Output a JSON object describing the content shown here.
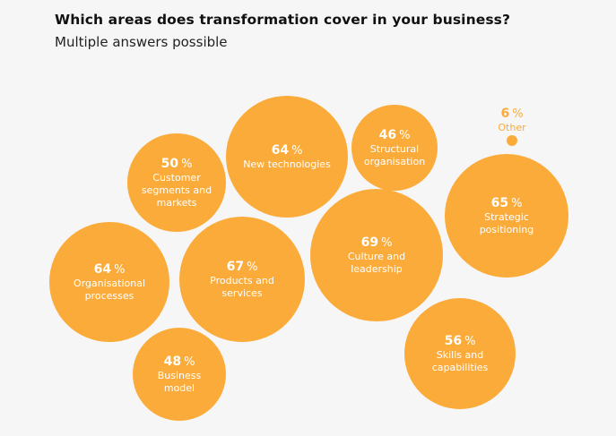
{
  "header": {
    "title": "Which areas does transformation cover in your business?",
    "subtitle": "Multiple answers possible"
  },
  "colors": {
    "bubble": "#fbab3a",
    "background": "#f6f6f6"
  },
  "chart_data": {
    "type": "bubble",
    "title": "Which areas does transformation cover in your business?",
    "subtitle": "Multiple answers possible",
    "unit": "%",
    "items": [
      {
        "label": "New technologies",
        "lines": [
          "New technologies"
        ],
        "value": 64
      },
      {
        "label": "Structural organisation",
        "lines": [
          "Structural",
          "organisation"
        ],
        "value": 46
      },
      {
        "label": "Other",
        "lines": [
          "Other"
        ],
        "value": 6
      },
      {
        "label": "Customer segments and markets",
        "lines": [
          "Customer",
          "segments and",
          "markets"
        ],
        "value": 50
      },
      {
        "label": "Strategic positioning",
        "lines": [
          "Strategic",
          "positioning"
        ],
        "value": 65
      },
      {
        "label": "Culture and leadership",
        "lines": [
          "Culture and",
          "leadership"
        ],
        "value": 69
      },
      {
        "label": "Organisational processes",
        "lines": [
          "Organisational",
          "processes"
        ],
        "value": 64
      },
      {
        "label": "Products and services",
        "lines": [
          "Products and",
          "services"
        ],
        "value": 67
      },
      {
        "label": "Skills and capabilities",
        "lines": [
          "Skills and",
          "capabilities"
        ],
        "value": 56
      },
      {
        "label": "Business model",
        "lines": [
          "Business",
          "model"
        ],
        "value": 48
      }
    ]
  }
}
